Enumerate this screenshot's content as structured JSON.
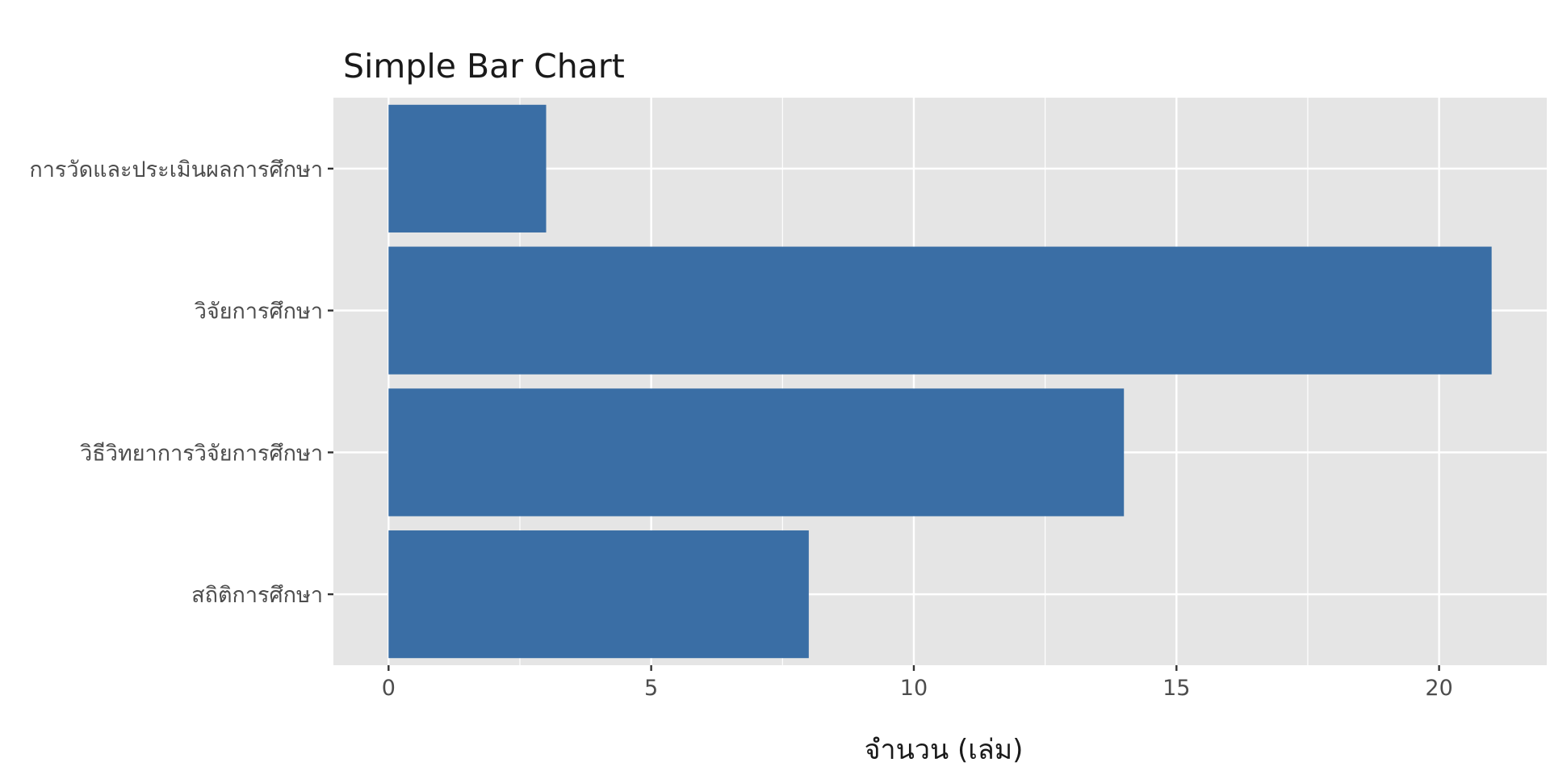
{
  "colors": {
    "panel_background": "#e5e5e5",
    "grid_line": "#ffffff",
    "bar_fill": "#3a6ea5",
    "tick_mark": "#333333"
  },
  "chart_data": {
    "type": "bar",
    "orientation": "horizontal",
    "title": "Simple Bar Chart",
    "xlabel": "จำนวน (เล่ม)",
    "ylabel": "",
    "categories": [
      "สถิติการศึกษา",
      "วิธีวิทยาการวิจัยการศึกษา",
      "วิจัยการศึกษา",
      "การวัดและประเมินผลการศึกษา"
    ],
    "values": [
      8,
      14,
      21,
      3
    ],
    "xlim": [
      -1.05,
      22.05
    ],
    "xticks": [
      0,
      5,
      10,
      15,
      20
    ],
    "xtick_labels": [
      "0",
      "5",
      "10",
      "15",
      "20"
    ],
    "grid": true,
    "legend": "none"
  }
}
